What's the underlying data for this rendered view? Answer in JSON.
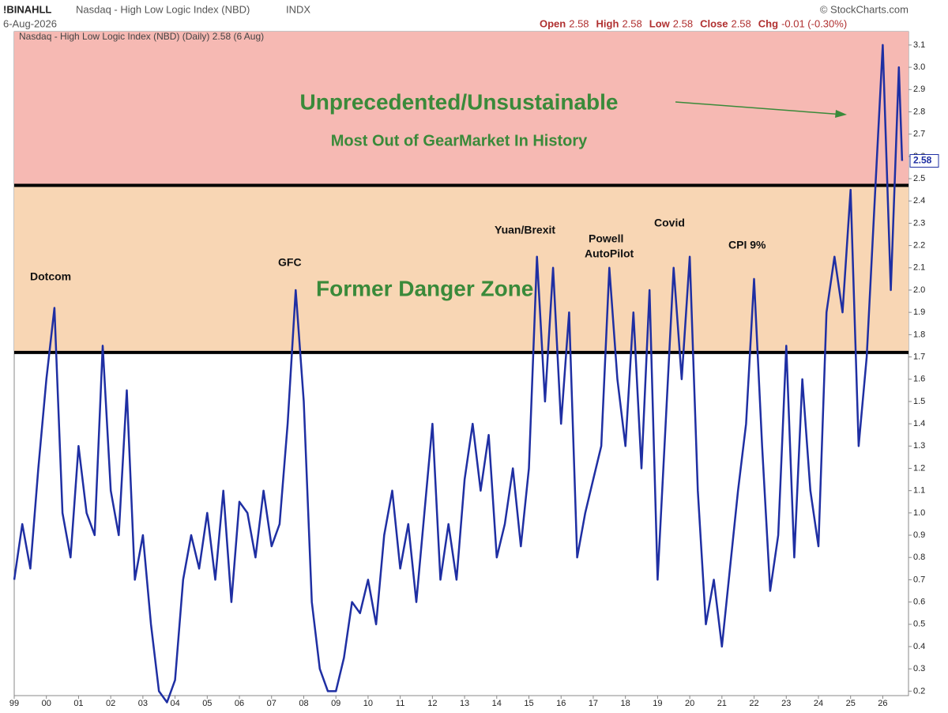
{
  "header": {
    "symbol": "!BINAHLL",
    "name": "Nasdaq - High Low Logic Index (NBD)",
    "exchange": "INDX",
    "date": "6-Aug-2026",
    "source": "© StockCharts.com",
    "ohlc": [
      [
        "Open",
        "2.58"
      ],
      [
        "High",
        "2.58"
      ],
      [
        "Low",
        "2.58"
      ],
      [
        "Close",
        "2.58"
      ],
      [
        "Chg",
        "-0.01 (-0.30%)"
      ]
    ]
  },
  "chart_data": {
    "type": "line",
    "annotations": [
      "Dotcom",
      "GFC",
      "Yuan/Brexit",
      "Powell",
      "AutoPilot",
      "Covid",
      "CPI 9%",
      "Former Danger Zone",
      "Unprecedented/Unsustainable",
      "Most Out of GearMarket In History"
    ],
    "reference_lines": [
      1.72,
      2.47
    ],
    "zone_colors": [
      "#f8d6b4",
      "#f6b9b3"
    ],
    "xlim": [
      1999,
      2026.8
    ],
    "xticks": [
      {
        "value": 1999,
        "label": "99"
      },
      {
        "value": 2000,
        "label": "00"
      },
      {
        "value": 2001,
        "label": "01"
      },
      {
        "value": 2002,
        "label": "02"
      },
      {
        "value": 2003,
        "label": "03"
      },
      {
        "value": 2004,
        "label": "04"
      },
      {
        "value": 2005,
        "label": "05"
      },
      {
        "value": 2006,
        "label": "06"
      },
      {
        "value": 2007,
        "label": "07"
      },
      {
        "value": 2008,
        "label": "08"
      },
      {
        "value": 2009,
        "label": "09"
      },
      {
        "value": 2010,
        "label": "10"
      },
      {
        "value": 2011,
        "label": "11"
      },
      {
        "value": 2012,
        "label": "12"
      },
      {
        "value": 2013,
        "label": "13"
      },
      {
        "value": 2014,
        "label": "14"
      },
      {
        "value": 2015,
        "label": "15"
      },
      {
        "value": 2016,
        "label": "16"
      },
      {
        "value": 2017,
        "label": "17"
      },
      {
        "value": 2018,
        "label": "18"
      },
      {
        "value": 2019,
        "label": "19"
      },
      {
        "value": 2020,
        "label": "20"
      },
      {
        "value": 2021,
        "label": "21"
      },
      {
        "value": 2022,
        "label": "22"
      },
      {
        "value": 2023,
        "label": "23"
      },
      {
        "value": 2024,
        "label": "24"
      },
      {
        "value": 2025,
        "label": "25"
      },
      {
        "value": 2026,
        "label": "26"
      }
    ],
    "ylim": [
      0.18,
      3.16
    ],
    "yticks": [
      0.2,
      0.3,
      0.4,
      0.5,
      0.6,
      0.7,
      0.8,
      0.9,
      {
        "value": 1.0,
        "label": "1.0"
      },
      1.1,
      1.2,
      1.3,
      1.4,
      1.5,
      1.6,
      1.7,
      1.8,
      1.9,
      {
        "value": 2.0,
        "label": "2.0"
      },
      2.1,
      2.2,
      2.3,
      2.4,
      2.5,
      2.6,
      2.7,
      2.8,
      2.9,
      {
        "value": 3.0,
        "label": "3.0"
      },
      3.1
    ],
    "x": [
      1999,
      1999.25,
      1999.5,
      1999.75,
      2000,
      2000.25,
      2000.5,
      2000.75,
      2001,
      2001.25,
      2001.5,
      2001.75,
      2002,
      2002.25,
      2002.5,
      2002.75,
      2003,
      2003.25,
      2003.5,
      2003.75,
      2004,
      2004.25,
      2004.5,
      2004.75,
      2005,
      2005.25,
      2005.5,
      2005.75,
      2006,
      2006.25,
      2006.5,
      2006.75,
      2007,
      2007.25,
      2007.5,
      2007.75,
      2008,
      2008.25,
      2008.5,
      2008.75,
      2009,
      2009.25,
      2009.5,
      2009.75,
      2010,
      2010.25,
      2010.5,
      2010.75,
      2011,
      2011.25,
      2011.5,
      2011.75,
      2012,
      2012.25,
      2012.5,
      2012.75,
      2013,
      2013.25,
      2013.5,
      2013.75,
      2014,
      2014.25,
      2014.5,
      2014.75,
      2015,
      2015.25,
      2015.5,
      2015.75,
      2016,
      2016.25,
      2016.5,
      2016.75,
      2017,
      2017.25,
      2017.5,
      2017.75,
      2018,
      2018.25,
      2018.5,
      2018.75,
      2019,
      2019.25,
      2019.5,
      2019.75,
      2020,
      2020.25,
      2020.5,
      2020.75,
      2021,
      2021.25,
      2021.5,
      2021.75,
      2022,
      2022.25,
      2022.5,
      2022.75,
      2023,
      2023.25,
      2023.5,
      2023.75,
      2024,
      2024.25,
      2024.5,
      2024.75,
      2025,
      2025.25,
      2025.5,
      2025.75,
      2026,
      2026.25,
      2026.5,
      2026.6
    ],
    "series": [
      {
        "name": "Nasdaq - High Low Logic Index (NBD) (Daily) 2.58 (6 Aug)",
        "color": "#1f2fa3",
        "values": [
          0.7,
          0.95,
          0.75,
          1.2,
          1.6,
          1.92,
          1.0,
          0.8,
          1.3,
          1.0,
          0.9,
          1.75,
          1.1,
          0.9,
          1.55,
          0.7,
          0.9,
          0.5,
          0.2,
          0.15,
          0.25,
          0.7,
          0.9,
          0.75,
          1.0,
          0.7,
          1.1,
          0.6,
          1.05,
          1.0,
          0.8,
          1.1,
          0.85,
          0.95,
          1.4,
          2.0,
          1.5,
          0.6,
          0.3,
          0.2,
          0.2,
          0.35,
          0.6,
          0.55,
          0.7,
          0.5,
          0.9,
          1.1,
          0.75,
          0.95,
          0.6,
          1.0,
          1.4,
          0.7,
          0.95,
          0.7,
          1.15,
          1.4,
          1.1,
          1.35,
          0.8,
          0.95,
          1.2,
          0.85,
          1.2,
          2.15,
          1.5,
          2.1,
          1.4,
          1.9,
          0.8,
          1.0,
          1.15,
          1.3,
          2.1,
          1.6,
          1.3,
          1.9,
          1.2,
          2.0,
          0.7,
          1.4,
          2.1,
          1.6,
          2.15,
          1.1,
          0.5,
          0.7,
          0.4,
          0.75,
          1.1,
          1.4,
          2.05,
          1.3,
          0.65,
          0.9,
          1.75,
          0.8,
          1.6,
          1.1,
          0.85,
          1.9,
          2.15,
          1.9,
          2.45,
          1.3,
          1.7,
          2.4,
          3.1,
          2.0,
          3.0,
          2.58
        ]
      }
    ]
  }
}
